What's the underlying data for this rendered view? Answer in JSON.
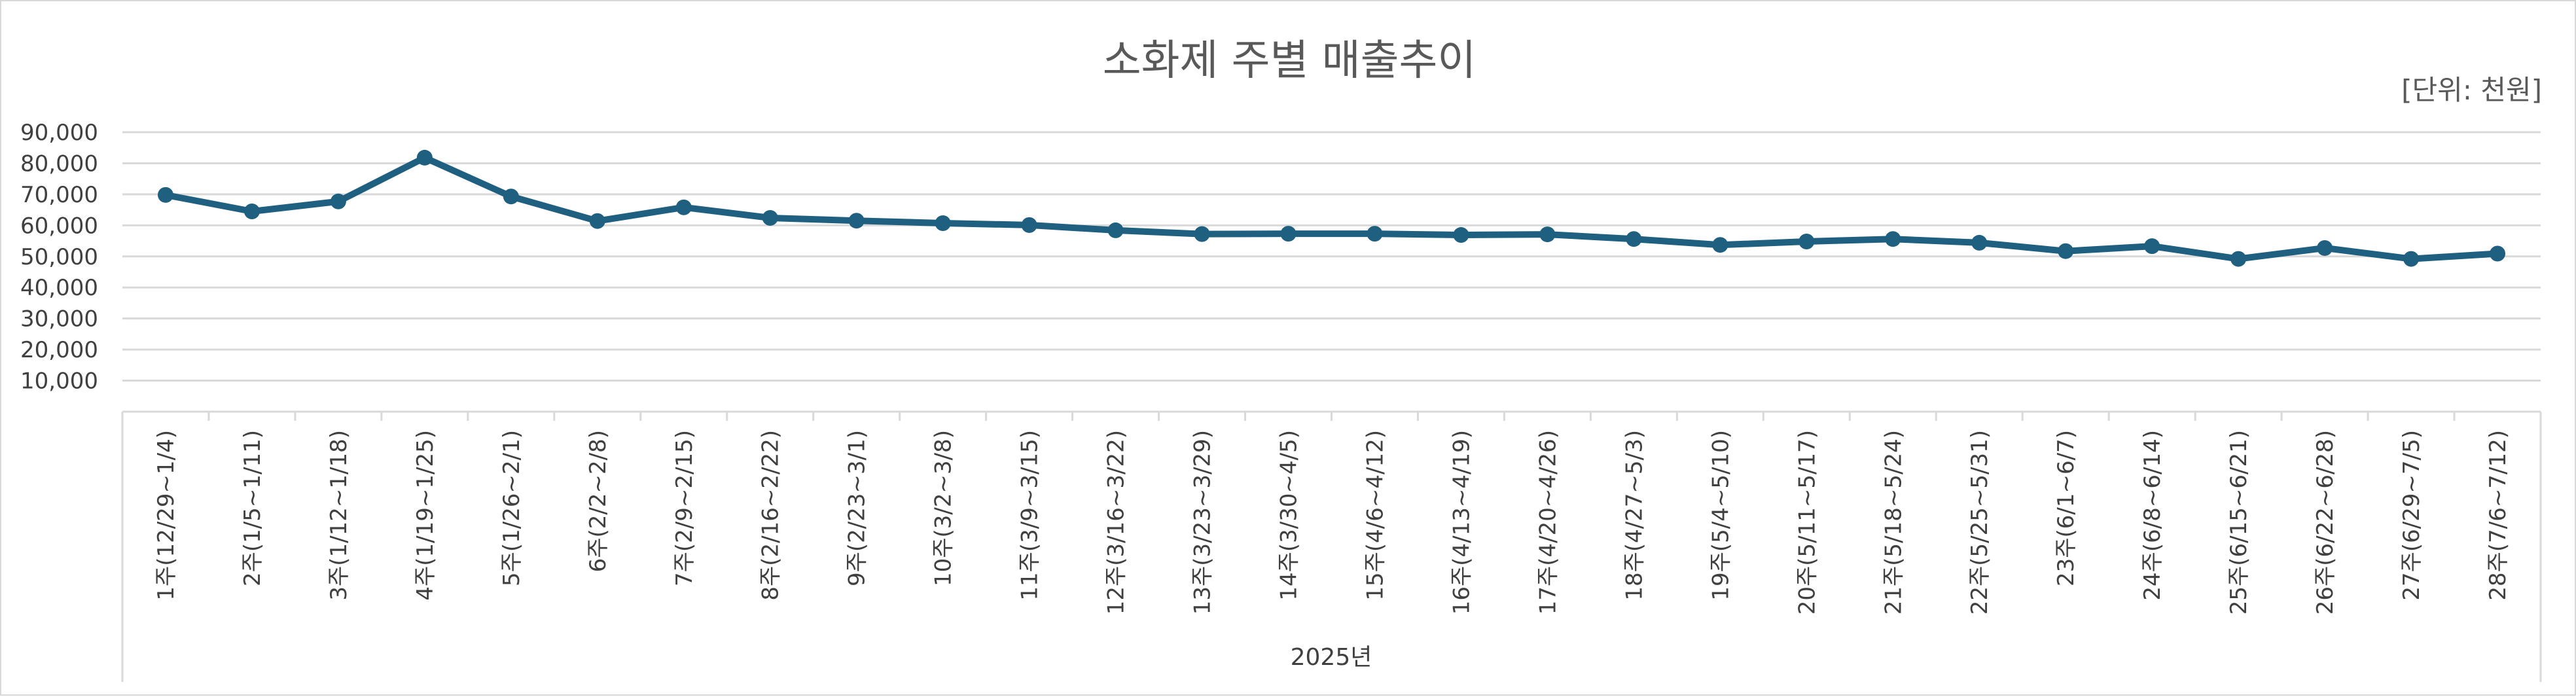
{
  "chart_data": {
    "type": "line",
    "title": "소화제 주별 매출추이",
    "unit_label": "[단위: 천원]",
    "group_label": "2025년",
    "categories": [
      "1주(12/29~1/4)",
      "2주(1/5~1/11)",
      "3주(1/12~1/18)",
      "4주(1/19~1/25)",
      "5주(1/26~2/1)",
      "6주(2/2~2/8)",
      "7주(2/9~2/15)",
      "8주(2/16~2/22)",
      "9주(2/23~3/1)",
      "10주(3/2~3/8)",
      "11주(3/9~3/15)",
      "12주(3/16~3/22)",
      "13주(3/23~3/29)",
      "14주(3/30~4/5)",
      "15주(4/6~4/12)",
      "16주(4/13~4/19)",
      "17주(4/20~4/26)",
      "18주(4/27~5/3)",
      "19주(5/4~5/10)",
      "20주(5/11~5/17)",
      "21주(5/18~5/24)",
      "22주(5/25~5/31)",
      "23주(6/1~6/7)",
      "24주(6/8~6/14)",
      "25주(6/15~6/21)",
      "26주(6/22~6/28)",
      "27주(6/29~7/5)",
      "28주(7/6~7/12)"
    ],
    "values": [
      69800,
      64500,
      67700,
      81800,
      69300,
      61400,
      65800,
      62400,
      61500,
      60700,
      60100,
      58400,
      57200,
      57300,
      57300,
      56900,
      57100,
      55600,
      53700,
      54800,
      55600,
      54400,
      51700,
      53300,
      49200,
      52700,
      49200,
      50900
    ],
    "ylim": [
      0,
      90000
    ],
    "yticks": [
      10000,
      20000,
      30000,
      40000,
      50000,
      60000,
      70000,
      80000,
      90000
    ],
    "ytick_labels": [
      "10,000",
      "20,000",
      "30,000",
      "40,000",
      "50,000",
      "60,000",
      "70,000",
      "80,000",
      "90,000"
    ],
    "grid": true,
    "legend": "none",
    "line_color": "#1f5f80",
    "grid_color": "#d9d9d9"
  }
}
